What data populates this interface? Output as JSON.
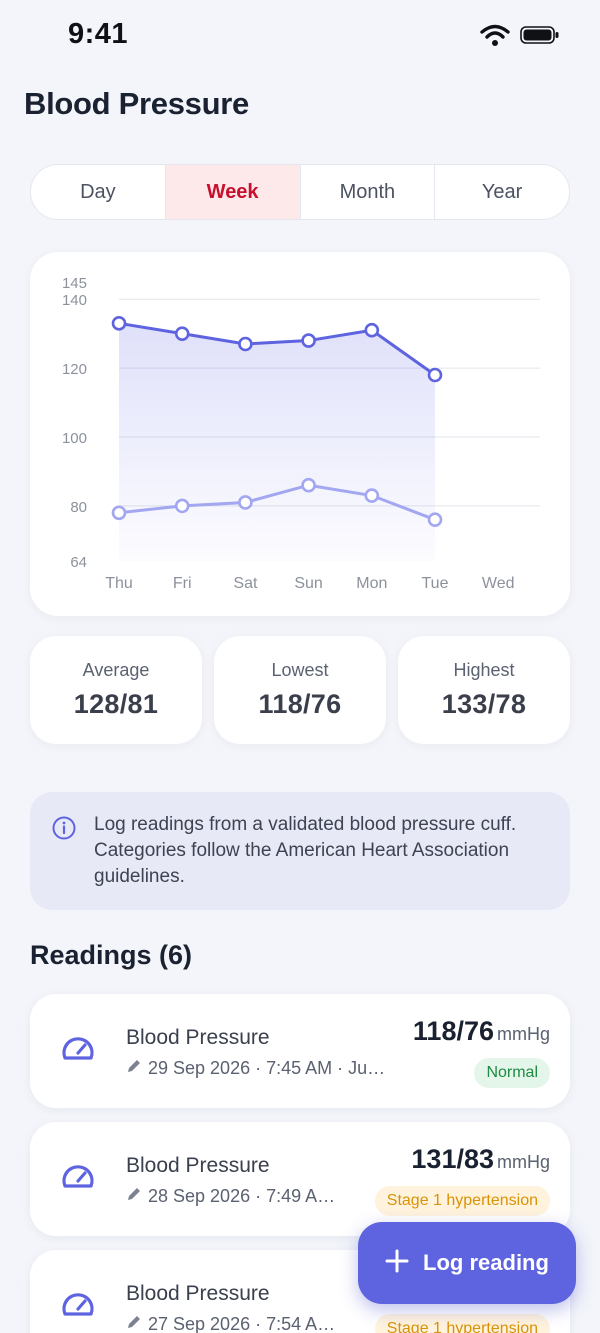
{
  "status_bar": {
    "time": "9:41"
  },
  "page": {
    "title": "Blood Pressure"
  },
  "tabs": [
    {
      "label": "Day",
      "active": false
    },
    {
      "label": "Week",
      "active": true
    },
    {
      "label": "Month",
      "active": false
    },
    {
      "label": "Year",
      "active": false
    }
  ],
  "chart_data": {
    "type": "line",
    "categories": [
      "Thu",
      "Fri",
      "Sat",
      "Sun",
      "Mon",
      "Tue",
      "Wed"
    ],
    "series": [
      {
        "values": [
          133,
          130,
          127,
          128,
          131,
          118,
          null
        ],
        "color": "#5e63e0",
        "fill": true
      },
      {
        "values": [
          78,
          80,
          81,
          86,
          83,
          76,
          null
        ],
        "color": "#a3a6f0",
        "fill": false
      }
    ],
    "ylim": [
      64,
      145
    ],
    "y_ticks": [
      145,
      140,
      120,
      100,
      80,
      64
    ],
    "grid_ticks": [
      140,
      120,
      100,
      80
    ],
    "grid": true
  },
  "stats": [
    {
      "label": "Average",
      "value": "128/81"
    },
    {
      "label": "Lowest",
      "value": "118/76"
    },
    {
      "label": "Highest",
      "value": "133/78"
    }
  ],
  "info": {
    "text": "Log readings from a validated blood pressure cuff. Categories follow the American Heart Association guidelines."
  },
  "readings_section": {
    "title": "Readings (6)"
  },
  "readings": [
    {
      "title": "Blood Pressure",
      "meta": "29 Sep 2026 · 7:45 AM · Jus…",
      "value": "118/76",
      "unit": "mmHg",
      "category": "Normal",
      "level": "normal"
    },
    {
      "title": "Blood Pressure",
      "meta": "28 Sep 2026 · 7:49 A…",
      "value": "131/83",
      "unit": "mmHg",
      "category": "Stage 1 hypertension",
      "level": "stage1"
    },
    {
      "title": "Blood Pressure",
      "meta": "27 Sep 2026 · 7:54 A…",
      "value": "",
      "unit": "",
      "category": "Stage 1 hypertension",
      "level": "stage1"
    }
  ],
  "fab": {
    "label": "Log reading"
  },
  "colors": {
    "accent": "#5e63e0",
    "active_tab": "#c8102e",
    "normal": "#1e8a42",
    "stage1": "#d99307"
  }
}
